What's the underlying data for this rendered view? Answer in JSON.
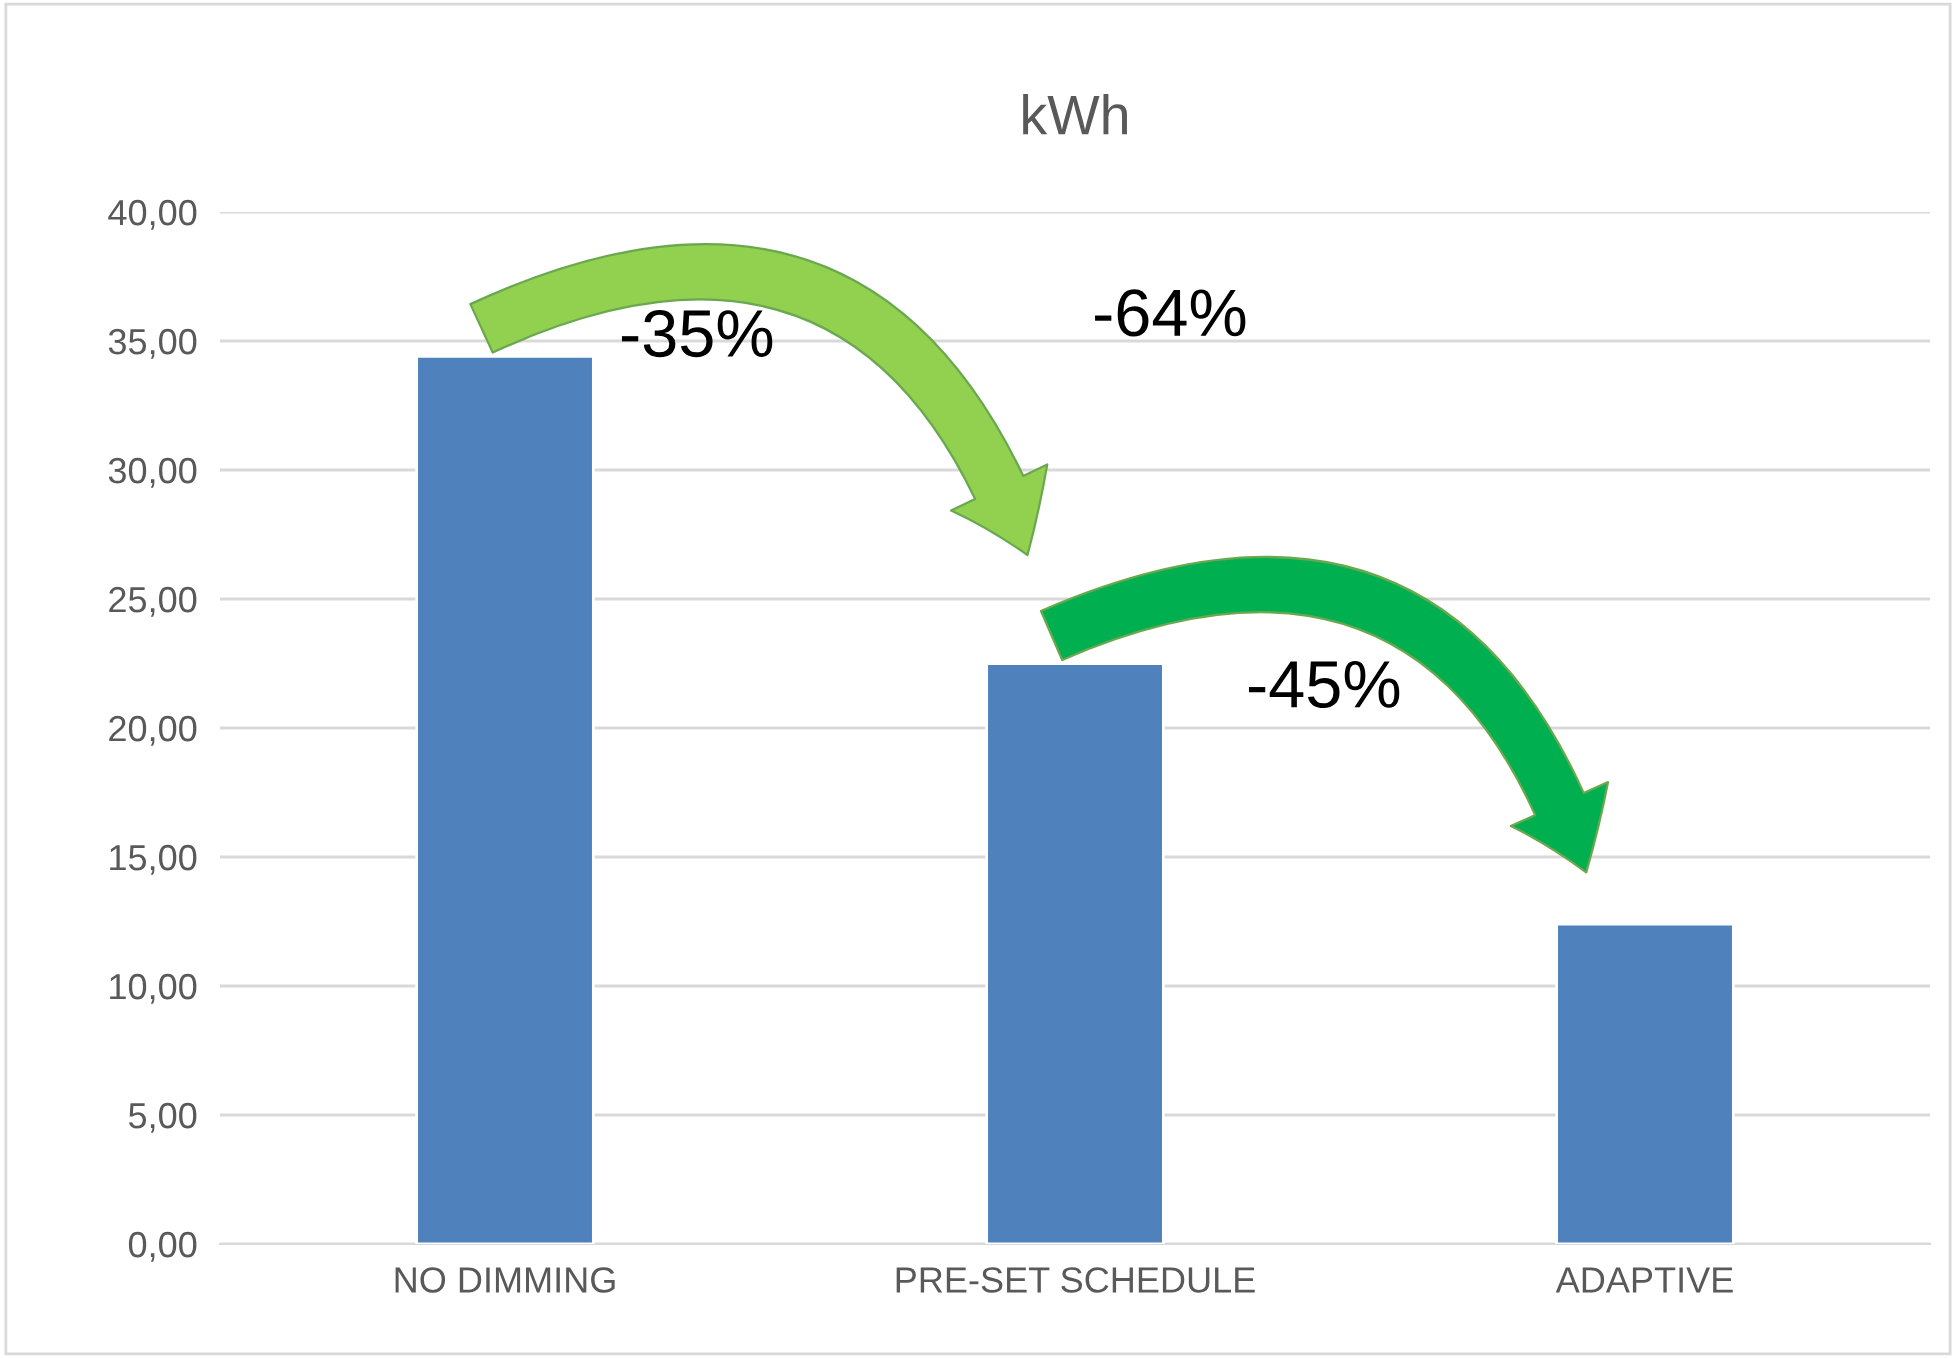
{
  "chart_data": {
    "type": "bar",
    "title": "kWh",
    "categories": [
      "NO DIMMING",
      "PRE-SET SCHEDULE",
      "ADAPTIVE"
    ],
    "values": [
      34.4,
      22.5,
      12.4
    ],
    "color": "#4f81bd",
    "ylim": [
      0,
      40
    ],
    "yticks": [
      {
        "value": 0,
        "label": "0,00"
      },
      {
        "value": 5,
        "label": "5,00"
      },
      {
        "value": 10,
        "label": "10,00"
      },
      {
        "value": 15,
        "label": "15,00"
      },
      {
        "value": 20,
        "label": "20,00"
      },
      {
        "value": 25,
        "label": "25,00"
      },
      {
        "value": 30,
        "label": "30,00"
      },
      {
        "value": 35,
        "label": "35,00"
      },
      {
        "value": 40,
        "label": "40,00"
      }
    ],
    "grid": "y",
    "annotations": [
      "-35%",
      "-64%",
      "-45%"
    ]
  }
}
